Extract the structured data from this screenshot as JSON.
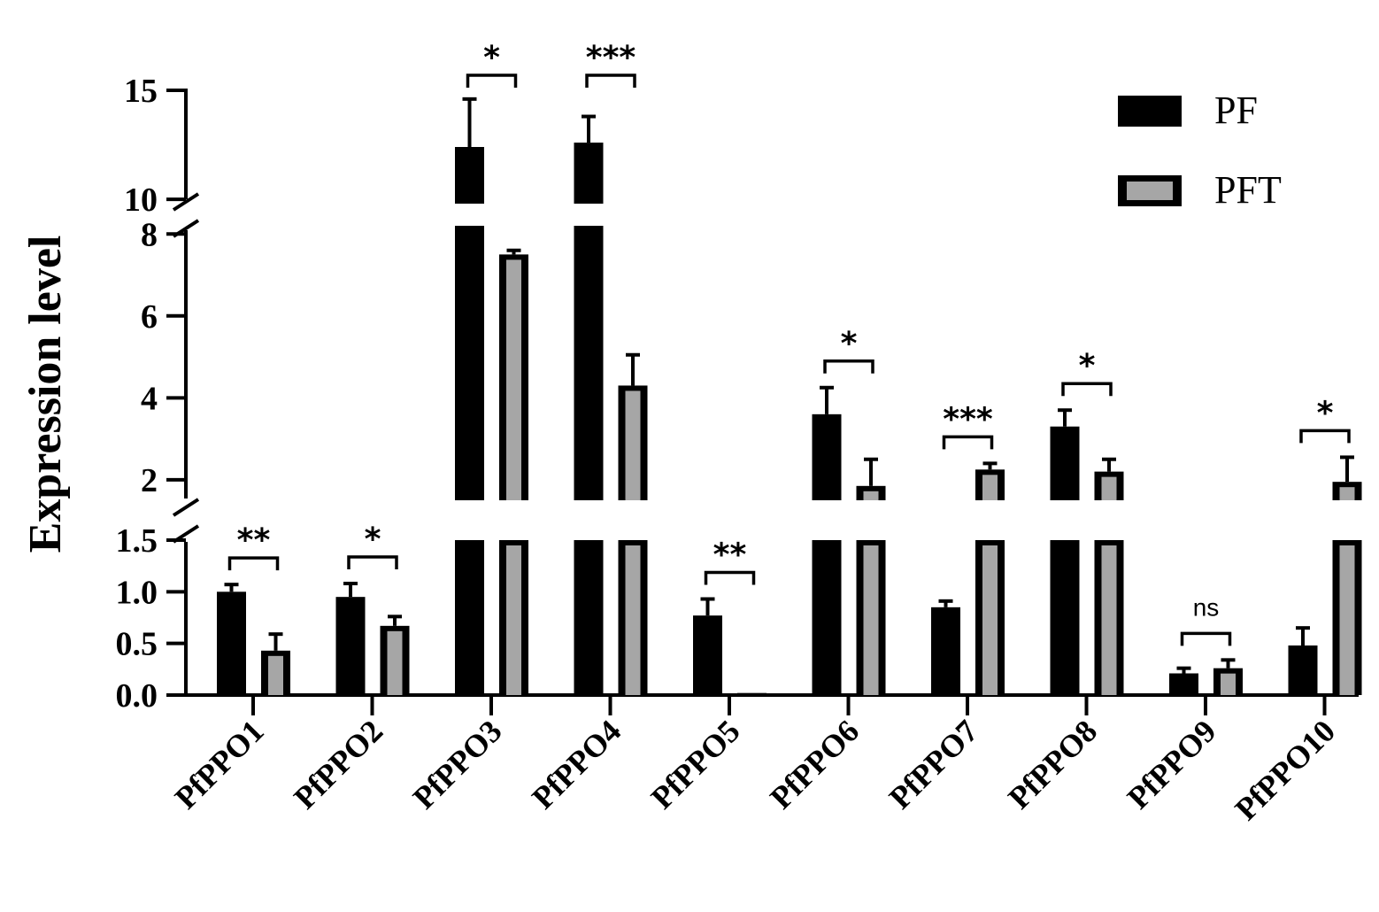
{
  "chart_data": {
    "type": "bar",
    "ylabel": "Expression level",
    "y_axis_segments": [
      {
        "range": [
          0,
          1.5
        ],
        "ticks": [
          "0.0",
          "0.5",
          "1.0",
          "1.5"
        ]
      },
      {
        "range": [
          1.5,
          8.2
        ],
        "ticks": [
          "2",
          "4",
          "6",
          "8"
        ]
      },
      {
        "range": [
          9.8,
          15
        ],
        "ticks": [
          "10",
          "15"
        ]
      }
    ],
    "categories": [
      "PfPPO1",
      "PfPPO2",
      "PfPPO3",
      "PfPPO4",
      "PfPPO5",
      "PfPPO6",
      "PfPPO7",
      "PfPPO8",
      "PfPPO9",
      "PfPPO10"
    ],
    "series": [
      {
        "name": "PF",
        "color": "#000000",
        "values": [
          1.0,
          0.95,
          12.4,
          12.6,
          0.77,
          3.6,
          0.85,
          3.3,
          0.21,
          0.48
        ],
        "errors": [
          0.07,
          0.13,
          2.2,
          1.2,
          0.16,
          0.65,
          0.06,
          0.4,
          0.05,
          0.17
        ]
      },
      {
        "name": "PFT",
        "color": "#a6a6a6",
        "values": [
          0.43,
          0.67,
          7.5,
          4.3,
          0.02,
          1.85,
          2.25,
          2.2,
          0.26,
          1.95
        ],
        "errors": [
          0.16,
          0.09,
          0.1,
          0.75,
          0.0,
          0.65,
          0.15,
          0.3,
          0.08,
          0.6
        ]
      }
    ],
    "significance": [
      "**",
      "*",
      "*",
      "***",
      "**",
      "*",
      "***",
      "*",
      "ns",
      "*"
    ],
    "legend_position": "top-right",
    "grid": false
  }
}
